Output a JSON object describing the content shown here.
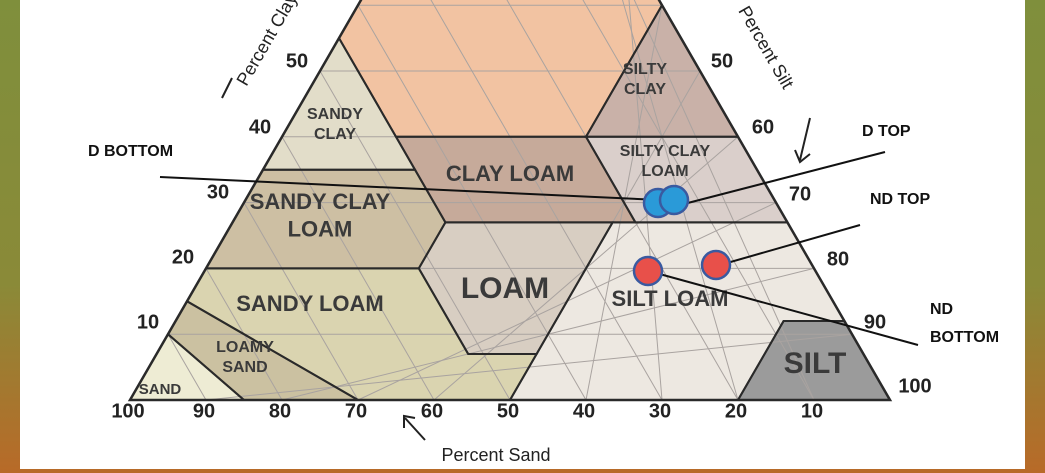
{
  "axes": {
    "clay_title": "Percent Clay",
    "silt_title": "Percent Silt",
    "sand_title": "Percent Sand",
    "clay_ticks": [
      50,
      40,
      30,
      20,
      10
    ],
    "silt_ticks": [
      50,
      60,
      70,
      80,
      90,
      100
    ],
    "sand_ticks": [
      100,
      90,
      80,
      70,
      60,
      50,
      40,
      30,
      20,
      10
    ]
  },
  "regions": [
    {
      "lines": [
        "SANDY",
        "CLAY"
      ]
    },
    {
      "lines": [
        "SILTY",
        "CLAY"
      ]
    },
    {
      "lines": [
        "CLAY LOAM"
      ]
    },
    {
      "lines": [
        "SILTY CLAY",
        "LOAM"
      ]
    },
    {
      "lines": [
        "SANDY CLAY",
        "LOAM"
      ]
    },
    {
      "lines": [
        "LOAM"
      ]
    },
    {
      "lines": [
        "SILT LOAM"
      ]
    },
    {
      "lines": [
        "SANDY LOAM"
      ]
    },
    {
      "lines": [
        "SILT"
      ]
    },
    {
      "lines": [
        "LOAMY",
        "SAND"
      ]
    },
    {
      "lines": [
        "SAND"
      ]
    }
  ],
  "annotations": [
    {
      "lines": [
        "D BOTTOM"
      ]
    },
    {
      "lines": [
        "D TOP"
      ]
    },
    {
      "lines": [
        "ND TOP"
      ]
    },
    {
      "lines": [
        "ND",
        "BOTTOM"
      ]
    }
  ]
}
